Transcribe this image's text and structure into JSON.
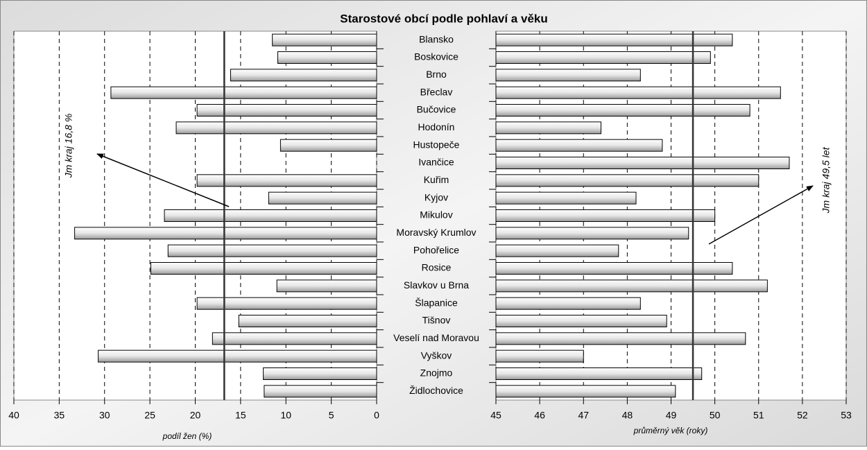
{
  "chart_data": [
    {
      "type": "bar",
      "title": "Starostové obcí podle pohlaví a věku",
      "categories": [
        "Blansko",
        "Boskovice",
        "Brno",
        "Břeclav",
        "Bučovice",
        "Hodonín",
        "Hustopeče",
        "Ivančice",
        "Kuřim",
        "Kyjov",
        "Mikulov",
        "Moravský Krumlov",
        "Pohořelice",
        "Rosice",
        "Slavkov u Brna",
        "Šlapanice",
        "Tišnov",
        "Veselí nad Moravou",
        "Vyškov",
        "Znojmo",
        "Židlochovice"
      ],
      "values": [
        11.5,
        10.9,
        16.1,
        29.3,
        19.8,
        22.1,
        10.6,
        0,
        19.8,
        11.9,
        23.4,
        33.3,
        23.0,
        24.9,
        11.0,
        19.8,
        15.2,
        18.1,
        30.7,
        12.5,
        12.4
      ],
      "color": "#d9d9d9",
      "xlim": [
        40,
        0
      ],
      "xticks": [
        40,
        35,
        30,
        25,
        20,
        15,
        10,
        5,
        0
      ],
      "x_label": "podíl žen (%)",
      "grid": true,
      "reference_line": 16.8,
      "annotation": "Jm kraj 16,8 %"
    },
    {
      "type": "bar",
      "values": [
        50.4,
        49.9,
        48.3,
        51.5,
        50.8,
        47.4,
        48.8,
        51.7,
        51.0,
        48.2,
        50.0,
        49.4,
        47.8,
        50.4,
        51.2,
        48.3,
        48.9,
        50.7,
        47.0,
        49.7,
        49.1
      ],
      "color": "#d9d9d9",
      "xlim": [
        45,
        53
      ],
      "xticks": [
        45,
        46,
        47,
        48,
        49,
        50,
        51,
        52,
        53
      ],
      "x_label": "průměrný věk (roky)",
      "grid": true,
      "reference_line": 49.5,
      "annotation": "Jm kraj 49,5 let"
    }
  ]
}
